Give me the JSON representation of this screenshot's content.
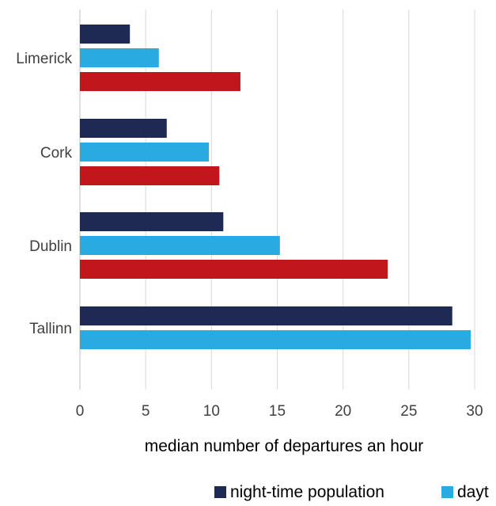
{
  "chart_data": {
    "type": "bar",
    "orientation": "horizontal",
    "categories": [
      "Limerick",
      "Cork",
      "Dublin",
      "Tallinn"
    ],
    "series": [
      {
        "name": "night-time population",
        "color": "#1f2a54",
        "values": [
          3.8,
          6.6,
          10.9,
          28.3
        ]
      },
      {
        "name": "dayt",
        "color": "#29abe2",
        "values": [
          6.0,
          9.8,
          15.2,
          29.7
        ]
      },
      {
        "color": "#c0161c",
        "values": [
          12.2,
          10.6,
          23.4,
          null
        ]
      }
    ],
    "xlabel": "median number of departures an hour",
    "ylabel": "",
    "xlim": [
      0,
      30
    ],
    "xticks": [
      "0",
      "5",
      "10",
      "15",
      "20",
      "25",
      "30"
    ],
    "grid": true,
    "legend_position": "bottom"
  }
}
